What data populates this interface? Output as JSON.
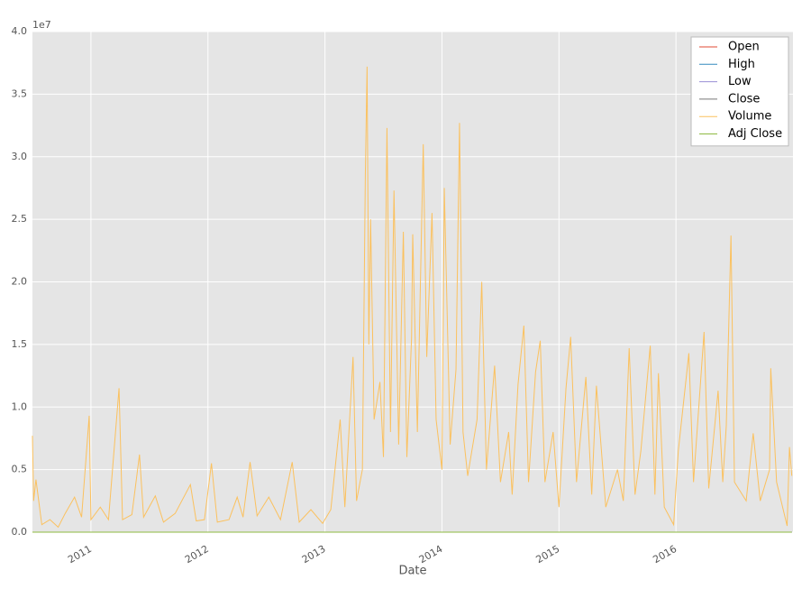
{
  "chart_data": {
    "type": "line",
    "x_label": "Date",
    "y_offset_label": "1e7",
    "xlim": [
      2010.5,
      2017.0
    ],
    "xticks": [
      2011,
      2012,
      2013,
      2014,
      2015,
      2016
    ],
    "ylim": [
      0,
      40000000
    ],
    "yticks": [
      {
        "value": 0,
        "label": "0.0"
      },
      {
        "value": 5000000,
        "label": "0.5"
      },
      {
        "value": 10000000,
        "label": "1.0"
      },
      {
        "value": 15000000,
        "label": "1.5"
      },
      {
        "value": 20000000,
        "label": "2.0"
      },
      {
        "value": 25000000,
        "label": "2.5"
      },
      {
        "value": 30000000,
        "label": "3.0"
      },
      {
        "value": 35000000,
        "label": "3.5"
      },
      {
        "value": 40000000,
        "label": "4.0"
      }
    ],
    "grid": true,
    "legend": "upper right",
    "series": [
      {
        "name": "Open",
        "color": "#E24A33",
        "x": [
          2010.5,
          2016.99
        ],
        "values": [
          0,
          0
        ]
      },
      {
        "name": "High",
        "color": "#348ABD",
        "x": [
          2010.5,
          2016.99
        ],
        "values": [
          0,
          0
        ]
      },
      {
        "name": "Low",
        "color": "#988ED5",
        "x": [
          2010.5,
          2016.99
        ],
        "values": [
          0,
          0
        ]
      },
      {
        "name": "Close",
        "color": "#777777",
        "x": [
          2010.5,
          2016.99
        ],
        "values": [
          0,
          0
        ]
      },
      {
        "name": "Volume",
        "color": "#FBC15E",
        "x": [
          2010.5,
          2010.51,
          2010.53,
          2010.58,
          2010.65,
          2010.72,
          2010.78,
          2010.86,
          2010.92,
          2010.985,
          2011.0,
          2011.08,
          2011.15,
          2011.24,
          2011.27,
          2011.35,
          2011.415,
          2011.45,
          2011.55,
          2011.62,
          2011.72,
          2011.85,
          2011.9,
          2011.97,
          2012.03,
          2012.08,
          2012.18,
          2012.25,
          2012.3,
          2012.36,
          2012.42,
          2012.52,
          2012.62,
          2012.72,
          2012.78,
          2012.88,
          2012.98,
          2013.05,
          2013.13,
          2013.17,
          2013.24,
          2013.27,
          2013.32,
          2013.345,
          2013.36,
          2013.375,
          2013.39,
          2013.42,
          2013.47,
          2013.5,
          2013.53,
          2013.56,
          2013.59,
          2013.63,
          2013.67,
          2013.7,
          2013.74,
          2013.75,
          2013.79,
          2013.84,
          2013.87,
          2013.915,
          2013.95,
          2014.0,
          2014.02,
          2014.07,
          2014.12,
          2014.15,
          2014.18,
          2014.22,
          2014.3,
          2014.34,
          2014.38,
          2014.45,
          2014.5,
          2014.57,
          2014.6,
          2014.65,
          2014.7,
          2014.74,
          2014.8,
          2014.84,
          2014.88,
          2014.95,
          2015.0,
          2015.06,
          2015.1,
          2015.15,
          2015.23,
          2015.28,
          2015.32,
          2015.4,
          2015.5,
          2015.55,
          2015.6,
          2015.65,
          2015.7,
          2015.78,
          2015.82,
          2015.85,
          2015.9,
          2015.98,
          2016.02,
          2016.11,
          2016.15,
          2016.24,
          2016.28,
          2016.36,
          2016.4,
          2016.43,
          2016.47,
          2016.5,
          2016.6,
          2016.66,
          2016.72,
          2016.8,
          2016.81,
          2016.86,
          2016.95,
          2016.97,
          2016.99
        ],
        "values": [
          7700000,
          2500000,
          4200000,
          600000,
          1000000,
          400000,
          1500000,
          2800000,
          1200000,
          9300000,
          1000000,
          2000000,
          1000000,
          11500000,
          1000000,
          1400000,
          6200000,
          1200000,
          2900000,
          800000,
          1500000,
          3800000,
          900000,
          1000000,
          5500000,
          800000,
          1000000,
          2800000,
          1200000,
          5600000,
          1300000,
          2800000,
          1000000,
          5600000,
          800000,
          1800000,
          700000,
          1800000,
          9000000,
          2000000,
          14000000,
          2500000,
          5000000,
          28500000,
          37200000,
          15000000,
          25000000,
          9000000,
          12000000,
          6000000,
          32300000,
          8000000,
          27300000,
          7000000,
          24000000,
          6000000,
          15500000,
          23800000,
          8000000,
          31000000,
          14000000,
          25500000,
          9000000,
          5000000,
          27500000,
          7000000,
          13000000,
          32700000,
          8000000,
          4500000,
          9000000,
          20000000,
          5000000,
          13300000,
          4000000,
          8000000,
          3000000,
          11800000,
          16500000,
          4000000,
          12800000,
          15300000,
          4000000,
          8000000,
          2000000,
          11500000,
          15600000,
          4000000,
          12400000,
          3000000,
          11700000,
          2000000,
          5000000,
          2500000,
          14700000,
          3000000,
          6500000,
          14900000,
          3000000,
          12700000,
          2000000,
          600000,
          6500000,
          14300000,
          4000000,
          16000000,
          3500000,
          11300000,
          4000000,
          8500000,
          23700000,
          4000000,
          2500000,
          7900000,
          2500000,
          5000000,
          13100000,
          4000000,
          500000,
          6800000,
          4500000
        ]
      },
      {
        "name": "Adj Close",
        "color": "#8EBA42",
        "x": [
          2010.5,
          2016.99
        ],
        "values": [
          0,
          0
        ]
      }
    ]
  }
}
